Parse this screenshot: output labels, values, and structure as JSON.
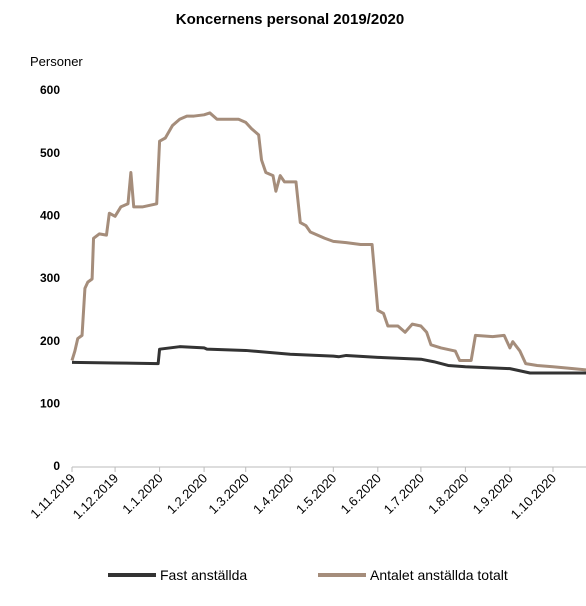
{
  "chart_data": {
    "type": "line",
    "title": "Koncernens personal 2019/2020",
    "y_label": "Personer",
    "xlim": [
      "2019-11-01",
      "2020-10-24"
    ],
    "xticks": [
      {
        "value": "2019-11-01",
        "label": "1.11.2019"
      },
      {
        "value": "2019-12-01",
        "label": "1.12.2019"
      },
      {
        "value": "2020-01-01",
        "label": "1.1.2020"
      },
      {
        "value": "2020-02-01",
        "label": "1.2.2020"
      },
      {
        "value": "2020-03-01",
        "label": "1.3.2020"
      },
      {
        "value": "2020-04-01",
        "label": "1.4.2020"
      },
      {
        "value": "2020-05-01",
        "label": "1.5.2020"
      },
      {
        "value": "2020-06-01",
        "label": "1.6.2020"
      },
      {
        "value": "2020-07-01",
        "label": "1.7.2020"
      },
      {
        "value": "2020-08-01",
        "label": "1.8.2020"
      },
      {
        "value": "2020-09-01",
        "label": "1.9.2020"
      },
      {
        "value": "2020-10-01",
        "label": "1.10.2020"
      }
    ],
    "ylim": [
      0,
      600
    ],
    "yticks": [
      0,
      100,
      200,
      300,
      400,
      500,
      600
    ],
    "grid": false,
    "legend": "bottom",
    "series": [
      {
        "name": "Fast anställda",
        "color": "#333333",
        "x": [
          "2019-11-01",
          "2019-12-01",
          "2019-12-31",
          "2020-01-01",
          "2020-01-15",
          "2020-02-01",
          "2020-02-03",
          "2020-03-01",
          "2020-04-01",
          "2020-05-01",
          "2020-05-05",
          "2020-05-10",
          "2020-06-01",
          "2020-07-01",
          "2020-07-10",
          "2020-07-20",
          "2020-08-01",
          "2020-09-01",
          "2020-09-15",
          "2020-10-24"
        ],
        "values": [
          167,
          166,
          165,
          188,
          192,
          190,
          188,
          186,
          180,
          177,
          176,
          178,
          175,
          172,
          168,
          162,
          160,
          157,
          150,
          150
        ]
      },
      {
        "name": "Antalet anställda totalt",
        "color": "#a58d7b",
        "x": [
          "2019-11-01",
          "2019-11-03",
          "2019-11-05",
          "2019-11-08",
          "2019-11-10",
          "2019-11-12",
          "2019-11-15",
          "2019-11-16",
          "2019-11-20",
          "2019-11-25",
          "2019-11-27",
          "2019-12-01",
          "2019-12-05",
          "2019-12-10",
          "2019-12-12",
          "2019-12-14",
          "2019-12-20",
          "2019-12-30",
          "2020-01-01",
          "2020-01-05",
          "2020-01-10",
          "2020-01-15",
          "2020-01-20",
          "2020-01-25",
          "2020-02-01",
          "2020-02-05",
          "2020-02-10",
          "2020-02-20",
          "2020-02-25",
          "2020-03-01",
          "2020-03-05",
          "2020-03-10",
          "2020-03-12",
          "2020-03-15",
          "2020-03-20",
          "2020-03-22",
          "2020-03-25",
          "2020-03-28",
          "2020-04-01",
          "2020-04-05",
          "2020-04-08",
          "2020-04-12",
          "2020-04-15",
          "2020-04-20",
          "2020-04-25",
          "2020-05-01",
          "2020-05-10",
          "2020-05-20",
          "2020-05-28",
          "2020-06-01",
          "2020-06-05",
          "2020-06-08",
          "2020-06-15",
          "2020-06-20",
          "2020-06-25",
          "2020-07-01",
          "2020-07-05",
          "2020-07-08",
          "2020-07-15",
          "2020-07-25",
          "2020-07-28",
          "2020-08-05",
          "2020-08-08",
          "2020-08-20",
          "2020-08-28",
          "2020-09-01",
          "2020-09-03",
          "2020-09-08",
          "2020-09-12",
          "2020-09-20",
          "2020-10-01",
          "2020-10-15",
          "2020-10-24"
        ],
        "values": [
          170,
          185,
          205,
          210,
          285,
          295,
          300,
          365,
          372,
          370,
          405,
          400,
          415,
          420,
          470,
          415,
          415,
          420,
          520,
          525,
          545,
          555,
          560,
          560,
          562,
          565,
          555,
          555,
          555,
          550,
          540,
          530,
          490,
          470,
          465,
          440,
          465,
          455,
          455,
          455,
          390,
          385,
          375,
          370,
          365,
          360,
          358,
          355,
          355,
          250,
          245,
          225,
          225,
          215,
          228,
          225,
          215,
          195,
          190,
          185,
          170,
          170,
          210,
          208,
          210,
          190,
          200,
          185,
          165,
          162,
          160,
          157,
          155
        ]
      }
    ]
  }
}
